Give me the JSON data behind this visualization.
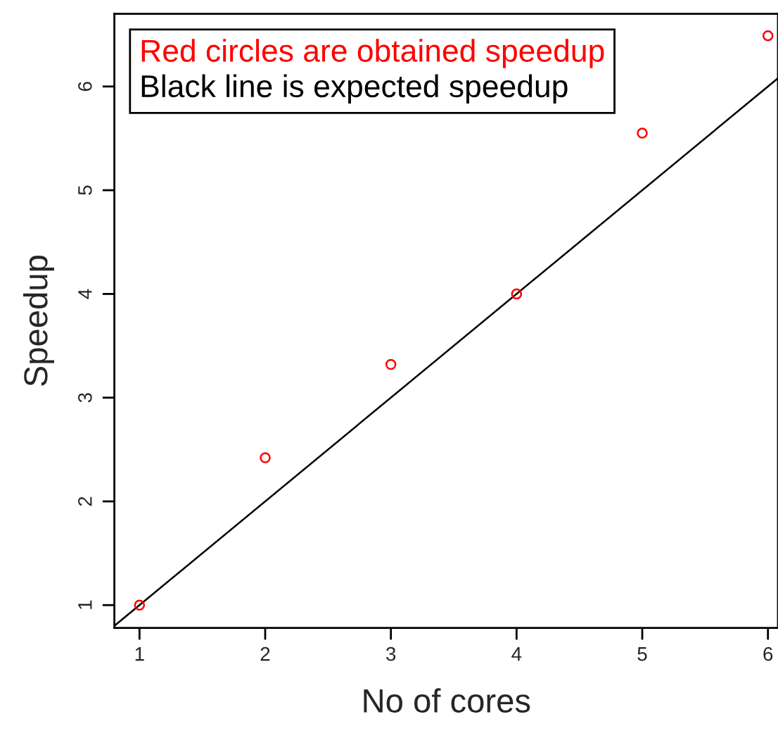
{
  "chart_data": {
    "type": "scatter",
    "xlabel": "No of cores",
    "ylabel": "Speedup",
    "x": [
      1,
      2,
      3,
      4,
      5,
      6
    ],
    "series": [
      {
        "name": "Red circles are obtained speedup",
        "color": "#ff0000",
        "marker": "circle",
        "values": [
          1.0,
          2.42,
          3.32,
          4.0,
          5.55,
          6.49
        ]
      },
      {
        "name": "Black line is expected speedup",
        "type": "line",
        "color": "#000000",
        "line_style": "solid",
        "x": [
          0.8,
          6.08
        ],
        "values": [
          0.8,
          6.08
        ]
      }
    ],
    "xlim": [
      0.8,
      6.08
    ],
    "ylim": [
      0.78,
      6.7
    ],
    "xticks": [
      1,
      2,
      3,
      4,
      5,
      6
    ],
    "yticks": [
      1,
      2,
      3,
      4,
      5,
      6
    ],
    "grid": false,
    "legend": "top left"
  }
}
